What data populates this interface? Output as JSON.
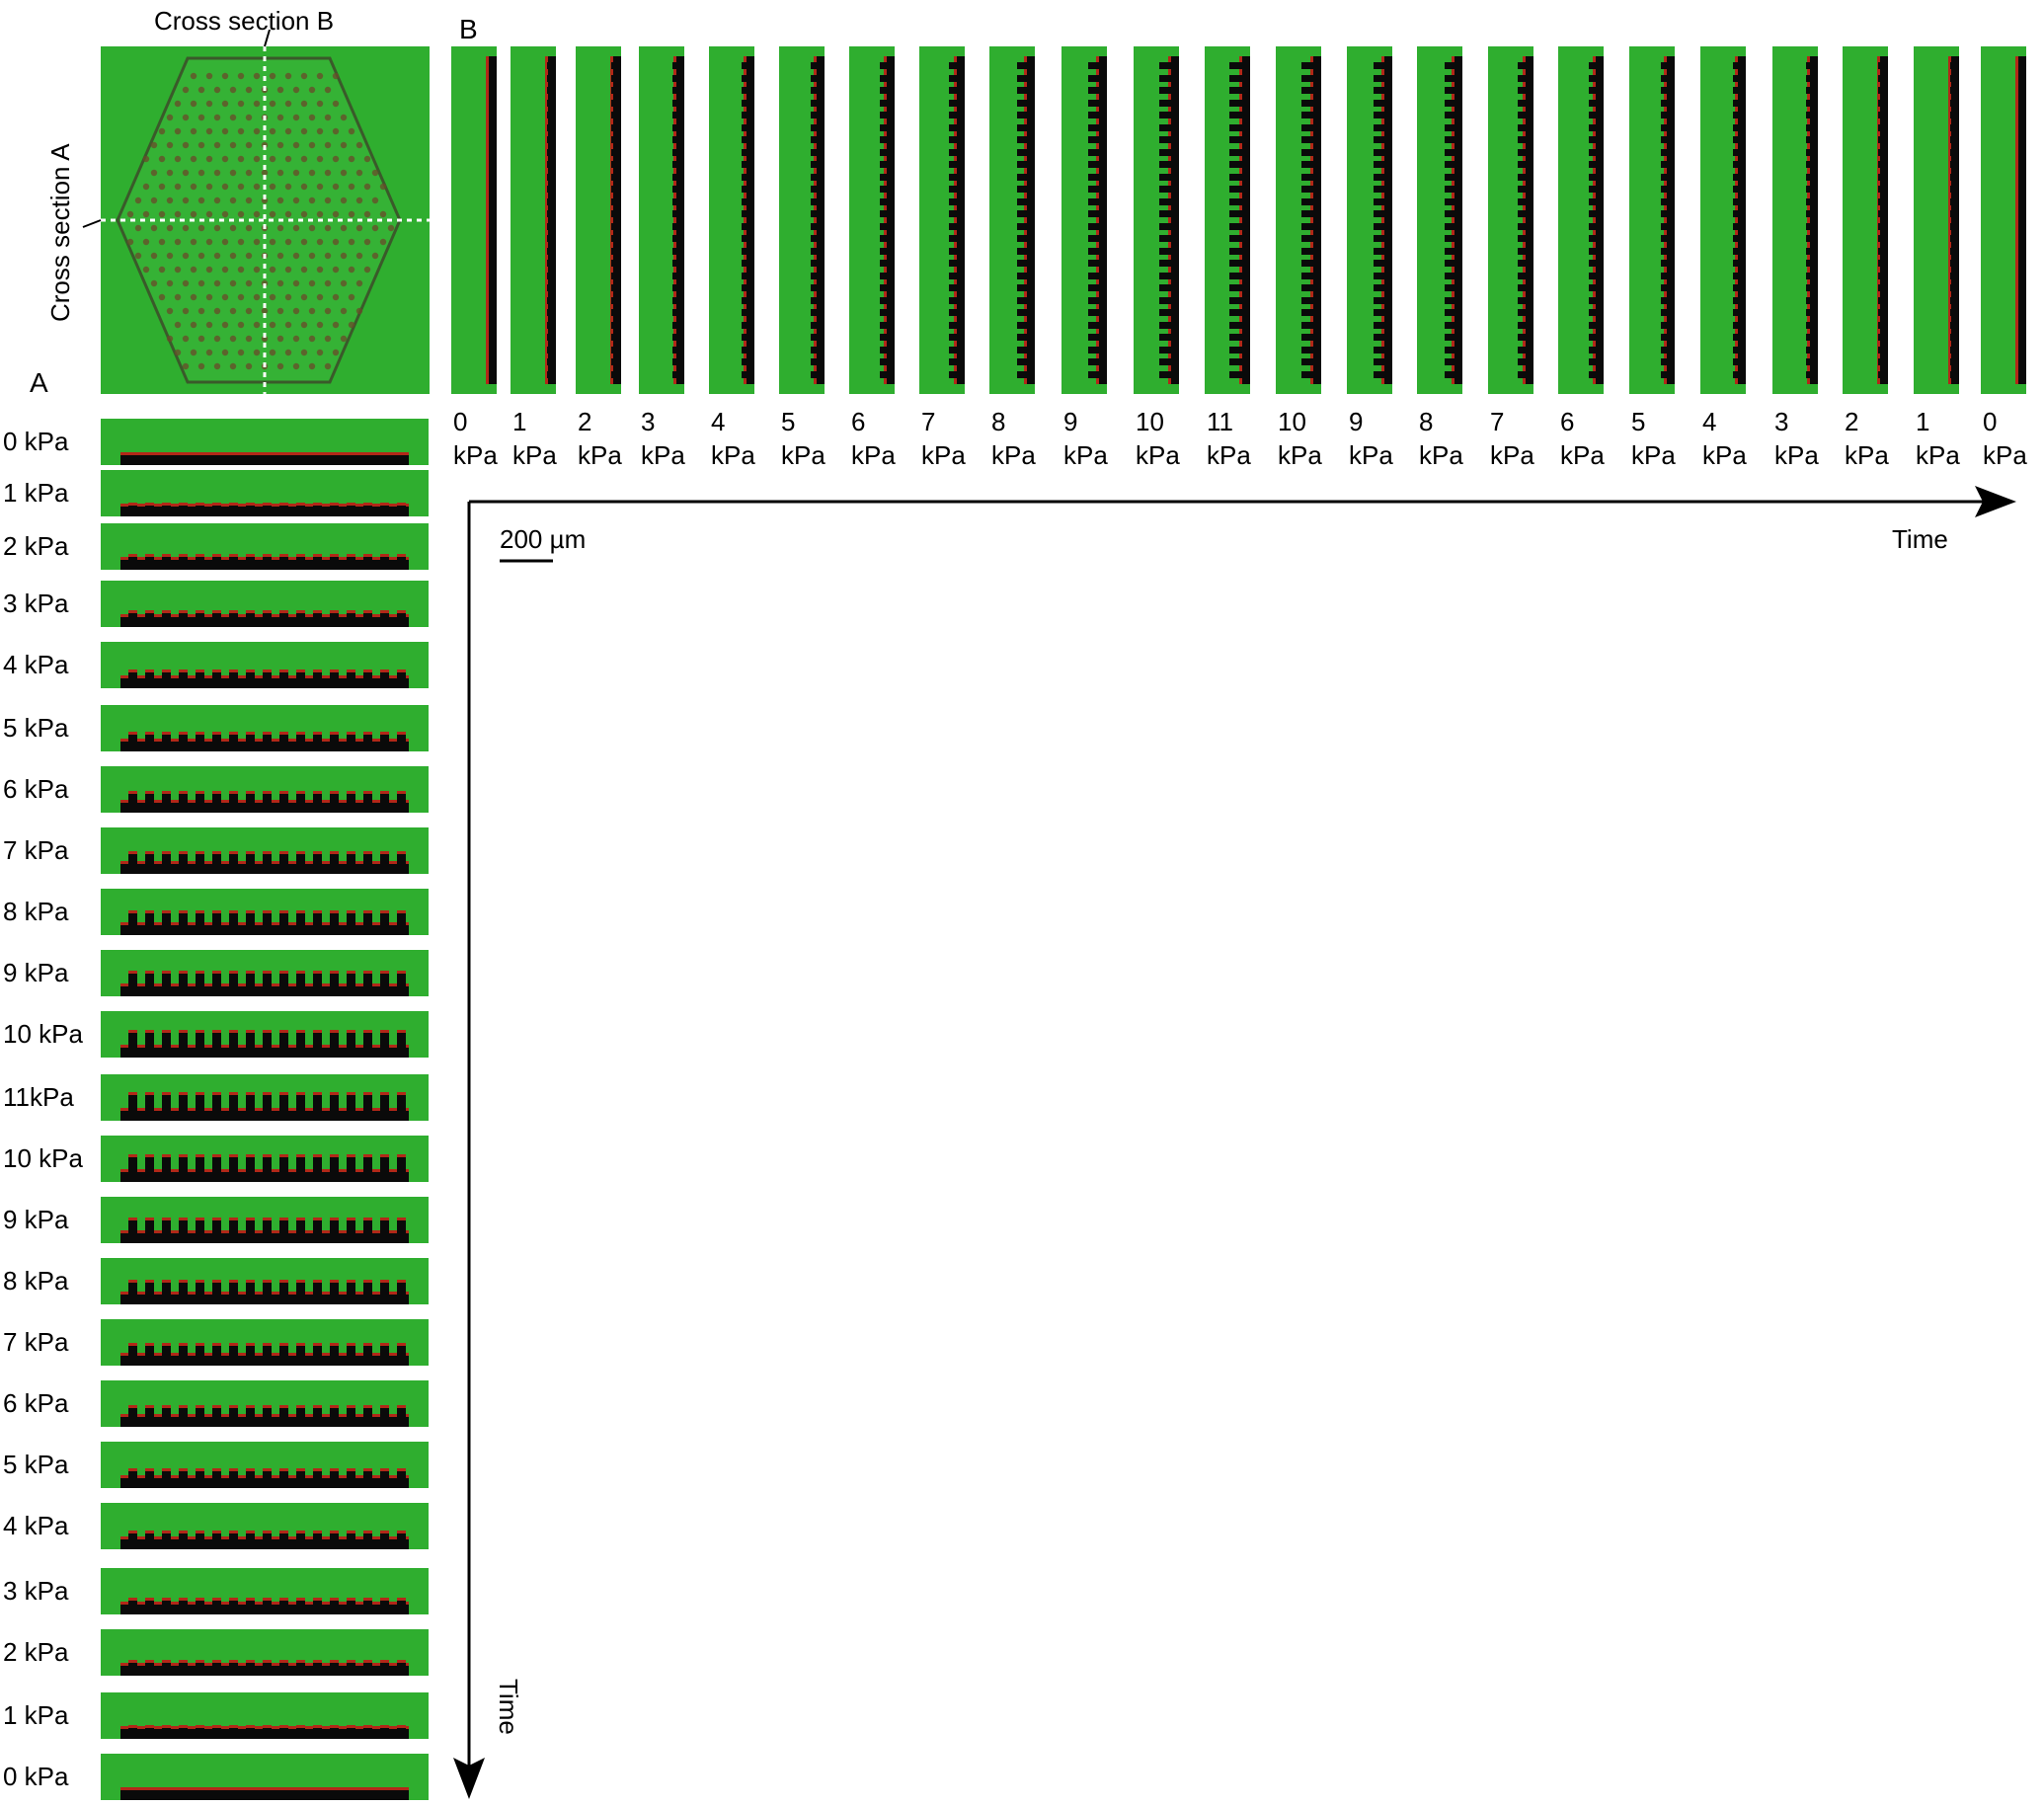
{
  "panels": {
    "a": "A",
    "b": "B"
  },
  "overview": {
    "cross_section_b_label": "Cross section B",
    "cross_section_a_label": "Cross section A"
  },
  "panel_a": {
    "labels": [
      "0 kPa",
      "1 kPa",
      "2 kPa",
      "3 kPa",
      "4 kPa",
      "5 kPa",
      "6 kPa",
      "7 kPa",
      "8 kPa",
      "9 kPa",
      "10 kPa",
      "11kPa",
      "10 kPa",
      "9 kPa",
      "8 kPa",
      "7 kPa",
      "6 kPa",
      "5 kPa",
      "4 kPa",
      "3 kPa",
      "2 kPa",
      "1 kPa",
      "0 kPa"
    ],
    "pressures_kpa": [
      0,
      1,
      2,
      3,
      4,
      5,
      6,
      7,
      8,
      9,
      10,
      11,
      10,
      9,
      8,
      7,
      6,
      5,
      4,
      3,
      2,
      1,
      0
    ],
    "time_label": "Time"
  },
  "panel_b": {
    "values": [
      "0",
      "1",
      "2",
      "3",
      "4",
      "5",
      "6",
      "7",
      "8",
      "9",
      "10",
      "11",
      "10",
      "9",
      "8",
      "7",
      "6",
      "5",
      "4",
      "3",
      "2",
      "1",
      "0"
    ],
    "unit": "kPa",
    "pressures_kpa": [
      0,
      1,
      2,
      3,
      4,
      5,
      6,
      7,
      8,
      9,
      10,
      11,
      10,
      9,
      8,
      7,
      6,
      5,
      4,
      3,
      2,
      1,
      0
    ],
    "time_label": "Time"
  },
  "scale_bar": {
    "label": "200 µm"
  },
  "colors": {
    "fluorescence": "#2fae2f",
    "membrane": "#b22818",
    "void": "#0a0a0a"
  }
}
